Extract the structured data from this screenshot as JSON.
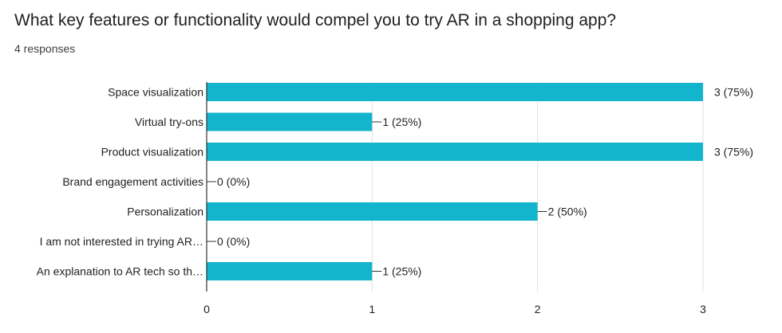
{
  "question": {
    "title": "What key features or functionality would compel you to try AR in a shopping app?",
    "responses": "4 responses"
  },
  "colors": {
    "bar": "#12b5cb",
    "axis": "#333333",
    "grid": "#e0e0e0",
    "text": "#202124"
  },
  "chart_data": {
    "type": "bar",
    "orientation": "horizontal",
    "categories": [
      "Space visualization",
      "Virtual try-ons",
      "Product visualization",
      "Brand engagement activities",
      "Personalization",
      "I am not interested in trying AR…",
      "An explanation to AR tech so th…"
    ],
    "values": [
      3,
      1,
      3,
      0,
      2,
      0,
      1
    ],
    "value_labels": [
      "3 (75%)",
      "1 (25%)",
      "3 (75%)",
      "0 (0%)",
      "2 (50%)",
      "0 (0%)",
      "1 (25%)"
    ],
    "xlim": [
      0,
      3
    ],
    "xticks": [
      "0",
      "1",
      "2",
      "3"
    ],
    "grid": true,
    "legend": "none"
  }
}
